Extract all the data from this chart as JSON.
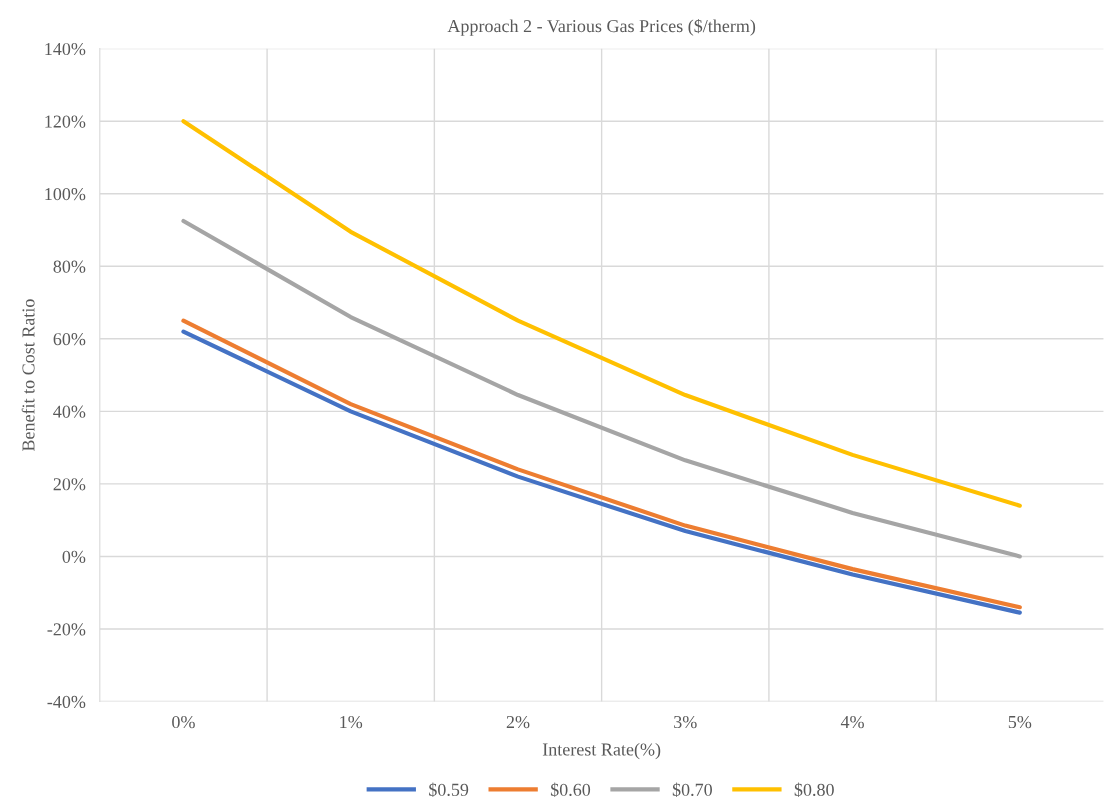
{
  "chart_data": {
    "type": "line",
    "title": "Approach 2 - Various Gas Prices ($/therm)",
    "xlabel": "Interest Rate(%)",
    "ylabel": "Benefit to Cost Ratio",
    "categories": [
      "0%",
      "1%",
      "2%",
      "3%",
      "4%",
      "5%"
    ],
    "series": [
      {
        "name": "$0.59",
        "color": "#4472c4",
        "values": [
          62,
          40,
          22,
          7,
          -5,
          -15.5
        ]
      },
      {
        "name": "$0.60",
        "color": "#ed7d31",
        "values": [
          65,
          42,
          24,
          8.5,
          -3.5,
          -14
        ]
      },
      {
        "name": "$0.70",
        "color": "#a5a5a5",
        "values": [
          92.5,
          66,
          44.5,
          26.5,
          12,
          0
        ]
      },
      {
        "name": "$0.80",
        "color": "#ffc000",
        "values": [
          120,
          89.5,
          65,
          44.5,
          28,
          14
        ]
      }
    ],
    "ylim": [
      -40,
      140
    ],
    "yticks": [
      {
        "value": -40,
        "label": "-40%"
      },
      {
        "value": -20,
        "label": "-20%"
      },
      {
        "value": 0,
        "label": "0%"
      },
      {
        "value": 20,
        "label": "20%"
      },
      {
        "value": 40,
        "label": "40%"
      },
      {
        "value": 60,
        "label": "60%"
      },
      {
        "value": 80,
        "label": "80%"
      },
      {
        "value": 100,
        "label": "100%"
      },
      {
        "value": 120,
        "label": "120%"
      },
      {
        "value": 140,
        "label": "140%"
      }
    ],
    "grid": true,
    "legend": "bottom",
    "marker": "none",
    "line_style": "solid"
  }
}
